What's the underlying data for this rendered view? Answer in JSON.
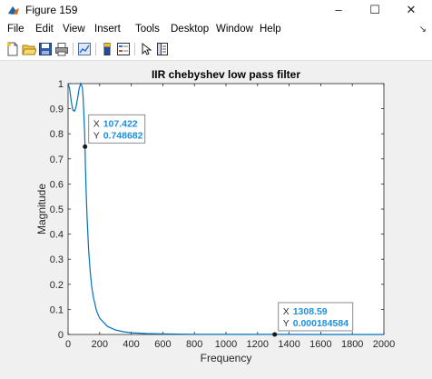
{
  "window": {
    "title": "Figure 159",
    "controls": [
      "–",
      "☐",
      "✕"
    ],
    "app_icon": "matlab-icon"
  },
  "menu": {
    "items": [
      "File",
      "Edit",
      "View",
      "Insert",
      "Tools",
      "Desktop",
      "Window",
      "Help"
    ],
    "overflow": "↘"
  },
  "toolbar": {
    "buttons": [
      "new-figure-icon",
      "open-file-icon",
      "save-icon",
      "print-icon",
      "link-plot-icon",
      "insert-colorbar-icon",
      "insert-legend-icon",
      "edit-plot-icon",
      "property-inspector-icon"
    ]
  },
  "chart_data": {
    "type": "line",
    "title": "IIR chebyshev low pass filter",
    "xlabel": "Frequency",
    "ylabel": "Magnitude",
    "xlim": [
      0,
      2000
    ],
    "ylim": [
      0,
      1
    ],
    "xticks": [
      "0",
      "200",
      "400",
      "600",
      "800",
      "1000",
      "1200",
      "1400",
      "1600",
      "1800",
      "2000"
    ],
    "yticks": [
      "0",
      "0.1",
      "0.2",
      "0.3",
      "0.4",
      "0.5",
      "0.6",
      "0.7",
      "0.8",
      "0.9",
      "1"
    ],
    "grid": false,
    "line_color": "#0072bd",
    "series": [
      {
        "x": [
          0,
          10,
          20,
          30,
          40,
          50,
          60,
          70,
          80,
          90,
          95,
          100,
          105,
          107.422,
          110,
          115,
          120,
          130,
          140,
          150,
          160,
          180,
          200,
          250,
          300,
          350,
          400,
          500,
          600,
          800,
          1000,
          1308.59,
          1600,
          2000
        ],
        "y": [
          1.0,
          0.98,
          0.93,
          0.895,
          0.89,
          0.905,
          0.94,
          0.98,
          1.0,
          0.985,
          0.95,
          0.88,
          0.8,
          0.748682,
          0.67,
          0.56,
          0.47,
          0.34,
          0.25,
          0.19,
          0.15,
          0.095,
          0.065,
          0.032,
          0.018,
          0.011,
          0.007,
          0.0035,
          0.002,
          0.0009,
          0.0005,
          0.000184584,
          0.0001,
          5e-05
        ]
      }
    ],
    "datatips": [
      {
        "x_label": "X",
        "x_value": "107.422",
        "y_label": "Y",
        "y_value": "0.748682",
        "x": 107.422,
        "y": 0.748682
      },
      {
        "x_label": "X",
        "x_value": "1308.59",
        "y_label": "Y",
        "y_value": "0.000184584",
        "x": 1308.59,
        "y": 0.000184584
      }
    ]
  }
}
